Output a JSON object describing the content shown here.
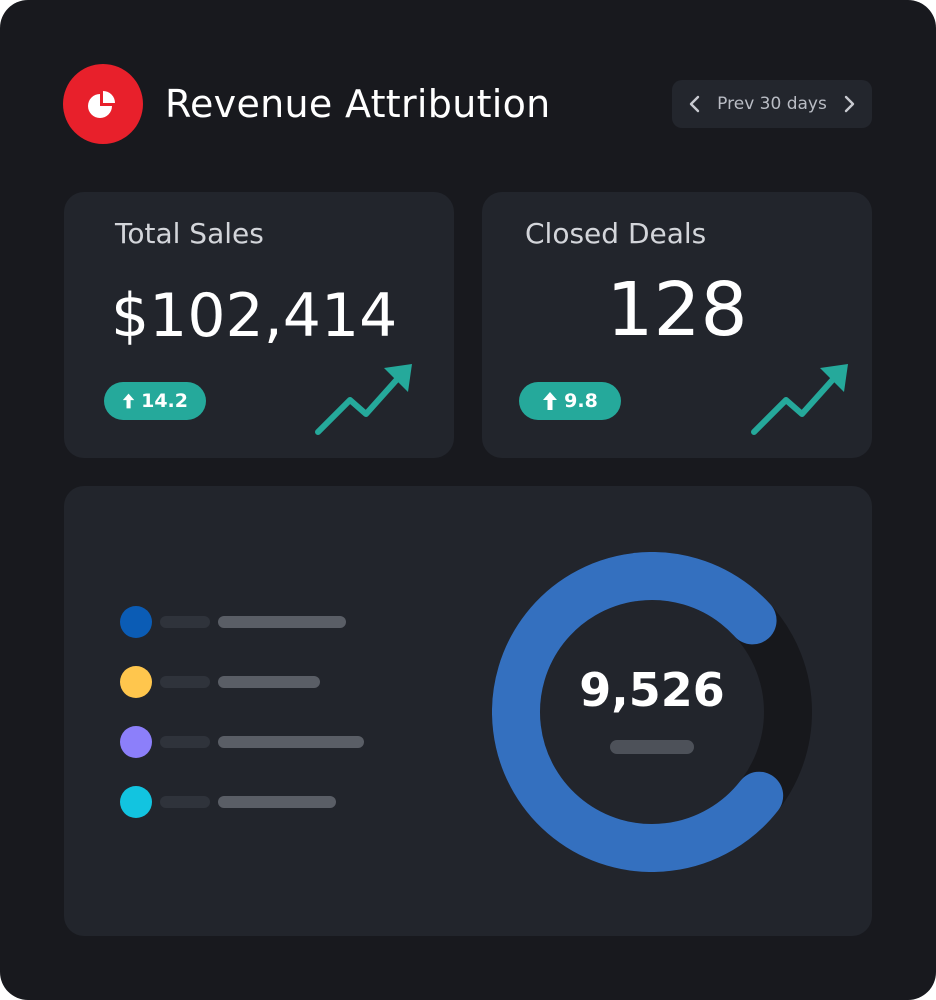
{
  "header": {
    "title": "Revenue Attribution",
    "logo_icon": "pie-chart-icon",
    "logo_color": "#e8202b",
    "range": {
      "label": "Prev 30 days",
      "prev_icon": "chevron-left-icon",
      "next_icon": "chevron-right-icon"
    }
  },
  "cards": {
    "total_sales": {
      "title": "Total Sales",
      "value": "$102,414",
      "change": "14.2",
      "change_icon": "arrow-up-icon",
      "trend_icon": "trend-up-icon"
    },
    "closed_deals": {
      "title": "Closed Deals",
      "value": "128",
      "change": "9.8",
      "change_icon": "arrow-up-icon",
      "trend_icon": "trend-up-icon"
    }
  },
  "breakdown": {
    "total": "9,526",
    "legend_colors": [
      "#0b5cb5",
      "#ffc64d",
      "#8c7ffa",
      "#12c4e0"
    ],
    "donut_fill_fraction": 0.8,
    "donut_color": "#3470bf",
    "donut_track_color": "#17181c"
  },
  "colors": {
    "accent_teal": "#25a99b",
    "background": "#18191e",
    "card": "#22252c"
  }
}
